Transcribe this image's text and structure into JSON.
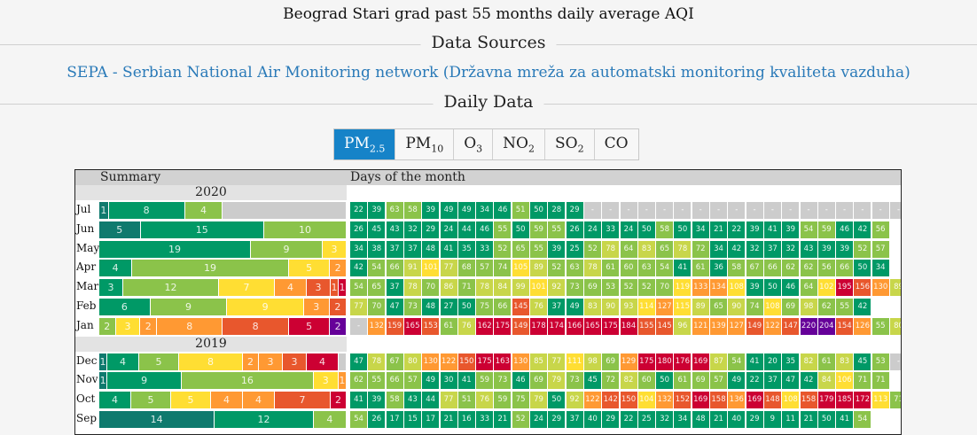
{
  "page_title": "Beograd Stari grad past 55 months daily average AQI",
  "data_sources_heading": "Data Sources",
  "source": {
    "name": "SEPA",
    "separator": " - ",
    "description": "Serbian National Air Monitoring network (Državna mreža za automatski monitoring kvaliteta vazduha)"
  },
  "daily_data_heading": "Daily Data",
  "tabs": [
    {
      "main": "PM",
      "sub": "2.5",
      "active": true
    },
    {
      "main": "PM",
      "sub": "10",
      "active": false
    },
    {
      "main": "O",
      "sub": "3",
      "active": false
    },
    {
      "main": "NO",
      "sub": "2",
      "active": false
    },
    {
      "main": "SO",
      "sub": "2",
      "active": false
    },
    {
      "main": "CO",
      "sub": "",
      "active": false
    }
  ],
  "table": {
    "summary_header": "Summary",
    "days_header": "Days of the month"
  },
  "aqi_colors": {
    "good": "#009966",
    "moderate": "#8bc34a",
    "usg": "#ffde33",
    "unhealthy": "#ff9933",
    "very_unhealthy": "#e8572d",
    "hazardous": "#cc0033",
    "severe": "#660099",
    "deep": "#0f7a6e",
    "na": "#cccccc"
  },
  "rows": [
    {
      "type": "year",
      "label": "2020"
    },
    {
      "type": "month",
      "label": "Jul",
      "summary": [
        [
          "teal",
          1
        ],
        [
          "green",
          8
        ],
        [
          "lgreen",
          4
        ],
        [
          "na",
          13
        ]
      ],
      "days": [
        22,
        39,
        63,
        58,
        39,
        49,
        49,
        34,
        46,
        51,
        50,
        28,
        29,
        "-",
        "-",
        "-",
        "-",
        "-",
        "-",
        "-",
        "-",
        "-",
        "-",
        "-",
        "-",
        "-",
        "-",
        "-",
        "-",
        "-",
        "-"
      ]
    },
    {
      "type": "month",
      "label": "Jun",
      "summary": [
        [
          "teal",
          5
        ],
        [
          "green",
          15
        ],
        [
          "lgreen",
          10
        ]
      ],
      "days": [
        26,
        45,
        43,
        32,
        29,
        24,
        44,
        46,
        55,
        50,
        59,
        55,
        26,
        24,
        33,
        24,
        50,
        58,
        50,
        34,
        21,
        22,
        39,
        41,
        39,
        54,
        59,
        46,
        42,
        56
      ]
    },
    {
      "type": "month",
      "label": "May",
      "summary": [
        [
          "green",
          19
        ],
        [
          "lgreen",
          9
        ],
        [
          "yellow",
          3
        ]
      ],
      "days": [
        34,
        38,
        37,
        37,
        48,
        41,
        35,
        33,
        52,
        65,
        55,
        39,
        25,
        52,
        78,
        64,
        83,
        65,
        78,
        72,
        34,
        42,
        32,
        37,
        32,
        43,
        39,
        39,
        52,
        57,
        null
      ]
    },
    {
      "type": "month",
      "label": "Apr",
      "summary": [
        [
          "green",
          4
        ],
        [
          "lgreen",
          19
        ],
        [
          "yellow",
          5
        ],
        [
          "orange",
          2
        ]
      ],
      "days": [
        42,
        54,
        66,
        91,
        101,
        77,
        68,
        57,
        74,
        105,
        89,
        52,
        63,
        78,
        61,
        60,
        63,
        54,
        41,
        61,
        36,
        58,
        67,
        66,
        62,
        62,
        56,
        66,
        50,
        34
      ]
    },
    {
      "type": "month",
      "label": "Mar",
      "summary": [
        [
          "green",
          3
        ],
        [
          "lgreen",
          12
        ],
        [
          "yellow",
          7
        ],
        [
          "orange",
          4
        ],
        [
          "red",
          3
        ],
        [
          "red2",
          1
        ],
        [
          "crimson",
          1
        ]
      ],
      "days": [
        54,
        65,
        37,
        78,
        70,
        86,
        71,
        78,
        84,
        99,
        101,
        92,
        73,
        69,
        53,
        52,
        52,
        70,
        119,
        133,
        134,
        108,
        39,
        50,
        46,
        64,
        102,
        195,
        156,
        130,
        89
      ]
    },
    {
      "type": "month",
      "label": "Feb",
      "summary": [
        [
          "green",
          6
        ],
        [
          "lgreen",
          9
        ],
        [
          "yellow",
          9
        ],
        [
          "orange",
          3
        ],
        [
          "red",
          2
        ]
      ],
      "days": [
        77,
        70,
        47,
        73,
        48,
        27,
        50,
        75,
        66,
        145,
        76,
        37,
        49,
        83,
        90,
        93,
        114,
        127,
        115,
        89,
        65,
        90,
        74,
        108,
        69,
        98,
        62,
        55,
        42
      ]
    },
    {
      "type": "month",
      "label": "Jan",
      "summary": [
        [
          "lgreen",
          2
        ],
        [
          "yellow",
          3
        ],
        [
          "orange",
          2
        ],
        [
          "orange2",
          8
        ],
        [
          "red",
          8
        ],
        [
          "crimson",
          5
        ],
        [
          "purple",
          2
        ]
      ],
      "days": [
        "-",
        132,
        159,
        165,
        153,
        61,
        76,
        162,
        175,
        149,
        178,
        174,
        166,
        165,
        175,
        184,
        155,
        145,
        96,
        121,
        139,
        127,
        149,
        122,
        147,
        220,
        204,
        154,
        126,
        55,
        80
      ]
    },
    {
      "type": "year",
      "label": "2019"
    },
    {
      "type": "month",
      "label": "Dec",
      "summary": [
        [
          "teal",
          1
        ],
        [
          "green",
          4
        ],
        [
          "lgreen",
          5
        ],
        [
          "yellow",
          8
        ],
        [
          "orange",
          2
        ],
        [
          "orange2",
          3
        ],
        [
          "red",
          3
        ],
        [
          "crimson",
          4
        ],
        [
          "na",
          1
        ]
      ],
      "days": [
        47,
        78,
        67,
        80,
        130,
        122,
        150,
        175,
        163,
        130,
        85,
        77,
        111,
        98,
        69,
        129,
        175,
        180,
        176,
        169,
        87,
        54,
        41,
        20,
        35,
        82,
        61,
        83,
        45,
        53,
        "-"
      ]
    },
    {
      "type": "month",
      "label": "Nov",
      "summary": [
        [
          "teal",
          1
        ],
        [
          "green",
          9
        ],
        [
          "lgreen",
          16
        ],
        [
          "yellow",
          3
        ],
        [
          "orange",
          1
        ]
      ],
      "days": [
        62,
        55,
        66,
        57,
        49,
        30,
        41,
        59,
        73,
        46,
        69,
        79,
        73,
        45,
        72,
        82,
        60,
        50,
        61,
        69,
        57,
        49,
        22,
        37,
        47,
        42,
        84,
        106,
        71,
        71
      ]
    },
    {
      "type": "month",
      "label": "Oct",
      "summary": [
        [
          "green",
          4
        ],
        [
          "lgreen",
          5
        ],
        [
          "yellow",
          5
        ],
        [
          "orange",
          4
        ],
        [
          "orange2",
          4
        ],
        [
          "red",
          7
        ],
        [
          "crimson",
          2
        ]
      ],
      "days": [
        41,
        39,
        58,
        43,
        44,
        77,
        51,
        76,
        59,
        75,
        79,
        50,
        92,
        122,
        142,
        150,
        104,
        132,
        152,
        169,
        158,
        136,
        169,
        148,
        108,
        158,
        179,
        185,
        172,
        113,
        71
      ]
    },
    {
      "type": "month",
      "label": "Sep",
      "summary": [
        [
          "deep",
          14
        ],
        [
          "green",
          12
        ],
        [
          "lgreen",
          4
        ]
      ],
      "days": [
        54,
        26,
        17,
        15,
        17,
        21,
        16,
        33,
        21,
        52,
        24,
        29,
        37,
        40,
        29,
        22,
        25,
        32,
        34,
        48,
        21,
        40,
        29,
        9,
        11,
        21,
        50,
        41,
        54,
        null
      ]
    }
  ]
}
